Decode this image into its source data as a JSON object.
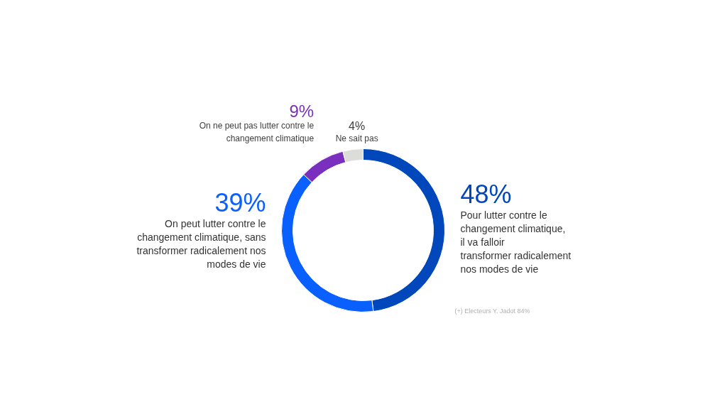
{
  "chart_data": {
    "type": "donut",
    "categories": [
      "Pour lutter contre le changement climatique, il va falloir transformer radicalement nos modes de vie",
      "On peut lutter contre le changement climatique, sans transformer radicalement nos modes de vie",
      "On ne peut pas lutter contre le changement climatique",
      "Ne sait pas"
    ],
    "values": [
      48,
      39,
      9,
      4
    ],
    "colors": [
      "#0047bb",
      "#0a5fff",
      "#7b2fbe",
      "#dcdcd8"
    ],
    "value_labels": [
      "48%",
      "39%",
      "9%",
      "4%"
    ],
    "annotations": [
      "(+) Electeurs Y. Jadot 84%"
    ]
  }
}
